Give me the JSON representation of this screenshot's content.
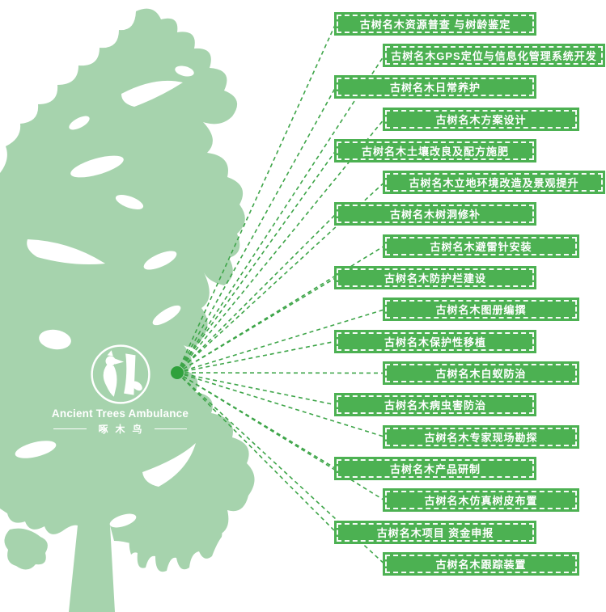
{
  "logo": {
    "title": "Ancient Trees Ambulance",
    "subtitle": "啄木鸟"
  },
  "colors": {
    "tree": "#a6d3ad",
    "box": "#4cb152",
    "line": "#3ea549",
    "dot": "#2fa13c",
    "label_text": "#ffffff"
  },
  "services": [
    {
      "label": "古树名木资源普查 与树龄鉴定"
    },
    {
      "label": "古树名木GPS定位与信息化管理系统开发",
      "wide": true
    },
    {
      "label": "古树名木日常养护"
    },
    {
      "label": "古树名木方案设计"
    },
    {
      "label": "古树名木土壤改良及配方施肥"
    },
    {
      "label": "古树名木立地环境改造及景观提升",
      "wide": true
    },
    {
      "label": "古树名木树洞修补"
    },
    {
      "label": "古树名木避雷针安装"
    },
    {
      "label": "古树名木防护栏建设"
    },
    {
      "label": "古树名木图册编撰"
    },
    {
      "label": "古树名木保护性移植"
    },
    {
      "label": "古树名木白蚁防治"
    },
    {
      "label": "古树名木病虫害防治"
    },
    {
      "label": "古树名木专家现场勘探"
    },
    {
      "label": "古树名木产品研制"
    },
    {
      "label": "古树名木仿真树皮布置"
    },
    {
      "label": "古树名木项目 资金申报"
    },
    {
      "label": "古树名木跟踪装置"
    }
  ]
}
